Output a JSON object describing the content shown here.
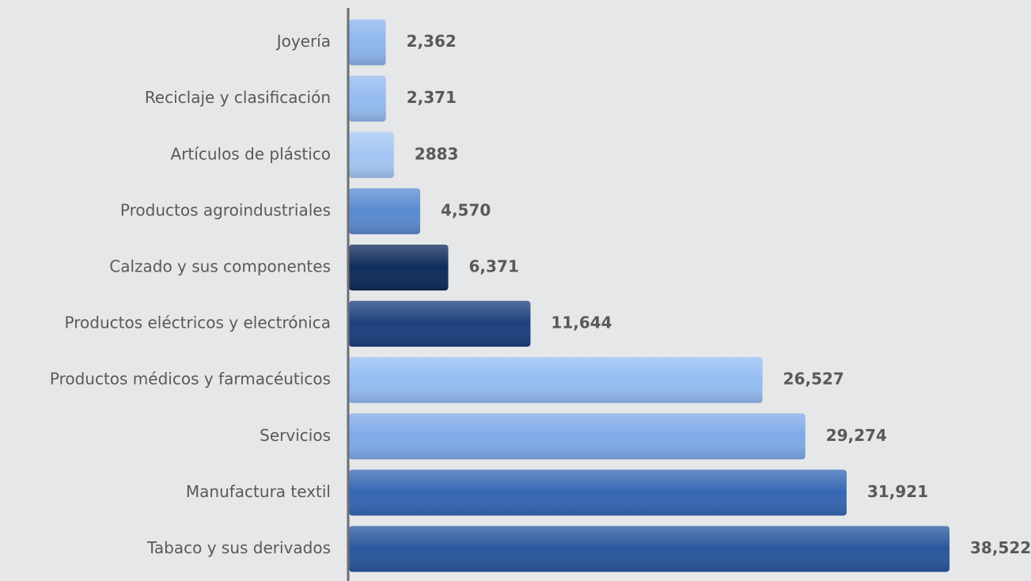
{
  "chart_data": {
    "type": "bar",
    "orientation": "horizontal",
    "categories": [
      "Joyería",
      "Reciclaje y clasificación",
      "Artículos de plástico",
      "Productos agroindustriales",
      "Calzado y sus componentes",
      "Productos eléctricos y electrónica",
      "Productos médicos y farmacéuticos",
      "Servicios",
      "Manufactura textil",
      "Tabaco y sus derivados"
    ],
    "values": [
      2362,
      2371,
      2883,
      4570,
      6371,
      11644,
      26527,
      29274,
      31921,
      38522
    ],
    "value_labels": [
      "2,362",
      "2,371",
      "2883",
      "4,570",
      "6,371",
      "11,644",
      "26,527",
      "29,274",
      "31,921",
      "38,522"
    ],
    "colors": [
      "#8db6ee",
      "#93bbf0",
      "#a4c6f4",
      "#5a8bd0",
      "#0f2c5a",
      "#1c3f7c",
      "#94bdf2",
      "#7eaae8",
      "#3567b4",
      "#28589d"
    ]
  }
}
